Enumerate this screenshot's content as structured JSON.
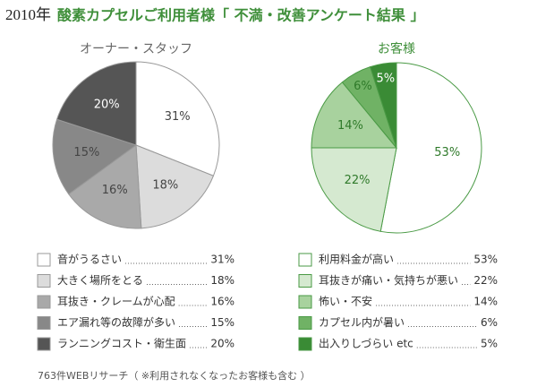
{
  "header": {
    "year": "2010年",
    "title": "酸素カプセルご利用者様「 不満・改善アンケート結果 」"
  },
  "chart_data": [
    {
      "type": "pie",
      "title": "オーナー・スタッフ",
      "categories": [
        "音がうるさい",
        "大きく場所をとる",
        "耳抜き・クレームが心配",
        "エア漏れ等の故障が多い",
        "ランニングコスト・衛生面"
      ],
      "values": [
        31,
        18,
        16,
        15,
        20
      ],
      "value_labels": [
        "31%",
        "18%",
        "16%",
        "15%",
        "20%"
      ],
      "colors": [
        "#ffffff",
        "#dcdcdc",
        "#a9a9a9",
        "#888888",
        "#555555"
      ],
      "stroke": "#999999"
    },
    {
      "type": "pie",
      "title": "お客様",
      "categories": [
        "利用料金が高い",
        "耳抜きが痛い・気持ちが悪い",
        "怖い・不安",
        "カプセル内が暑い",
        "出入りしづらい etc"
      ],
      "values": [
        53,
        22,
        14,
        6,
        5
      ],
      "value_labels": [
        "53%",
        "22%",
        "14%",
        "6%",
        "5%"
      ],
      "colors": [
        "#ffffff",
        "#d5e9d0",
        "#a8d29e",
        "#70b265",
        "#3a8b35"
      ],
      "stroke": "#4a9a45"
    }
  ],
  "footnote": "763件WEBリサーチ（ ※利用されなくなったお客様も含む ）"
}
